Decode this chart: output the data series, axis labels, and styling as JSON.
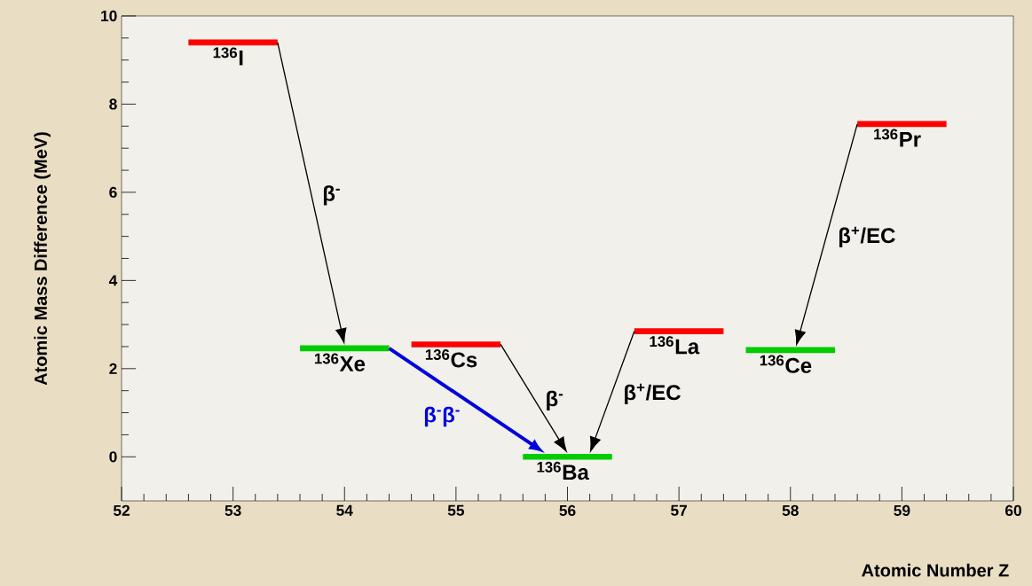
{
  "chart_data": {
    "type": "line",
    "xlabel": "Atomic Number Z",
    "ylabel": "Atomic Mass Difference (MeV)",
    "xlim": [
      52,
      60
    ],
    "ylim": [
      -1,
      10
    ],
    "xticks": [
      52,
      53,
      54,
      55,
      56,
      57,
      58,
      59,
      60
    ],
    "yticks": [
      0,
      2,
      4,
      6,
      8,
      10
    ],
    "grid": false,
    "series": [
      {
        "name": "$^{136}$I",
        "color": "#ff0000",
        "x": [
          52.6,
          53.4
        ],
        "values": [
          9.4,
          9.4
        ]
      },
      {
        "name": "$^{136}$Xe",
        "color": "#00cc00",
        "x": [
          53.6,
          54.4
        ],
        "values": [
          2.46,
          2.46
        ]
      },
      {
        "name": "$^{136}$Cs",
        "color": "#ff0000",
        "x": [
          54.6,
          55.4
        ],
        "values": [
          2.55,
          2.55
        ]
      },
      {
        "name": "$^{136}$Ba",
        "color": "#00cc00",
        "x": [
          55.6,
          56.4
        ],
        "values": [
          0,
          0
        ]
      },
      {
        "name": "$^{136}$La",
        "color": "#ff0000",
        "x": [
          56.6,
          57.4
        ],
        "values": [
          2.85,
          2.85
        ]
      },
      {
        "name": "$^{136}$Ce",
        "color": "#00cc00",
        "x": [
          57.6,
          58.4
        ],
        "values": [
          2.42,
          2.42
        ]
      },
      {
        "name": "$^{136}$Pr",
        "color": "#ff0000",
        "x": [
          58.6,
          59.4
        ],
        "values": [
          7.55,
          7.55
        ]
      }
    ],
    "annotations": [
      "β$^{-}$",
      "β$^{-}$β$^{-}$",
      "β$^{-}$",
      "β$^{+}$/EC",
      "β$^{+}$/EC"
    ]
  }
}
